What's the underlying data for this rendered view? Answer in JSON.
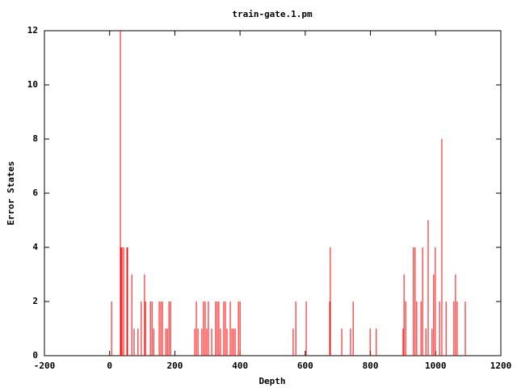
{
  "chart_data": {
    "type": "impulse",
    "title": "train-gate.1.pm",
    "xlabel": "Depth",
    "ylabel": "Error States",
    "color": "#ff0000",
    "x": [
      6,
      33,
      35,
      38,
      43,
      53,
      55,
      68,
      75,
      87,
      97,
      107,
      110,
      125,
      130,
      135,
      152,
      157,
      162,
      172,
      177,
      182,
      187,
      261,
      266,
      271,
      283,
      288,
      293,
      298,
      303,
      313,
      325,
      330,
      335,
      340,
      350,
      355,
      360,
      370,
      375,
      380,
      385,
      395,
      400,
      563,
      571,
      603,
      675,
      677,
      712,
      739,
      747,
      799,
      818,
      900,
      903,
      908,
      932,
      937,
      942,
      955,
      960,
      970,
      977,
      989,
      994,
      999,
      1012,
      1019,
      1032,
      1056,
      1061,
      1066,
      1091
    ],
    "values": [
      2,
      12,
      4,
      4,
      4,
      4,
      4,
      3,
      1,
      1,
      2,
      3,
      2,
      2,
      2,
      1,
      2,
      2,
      2,
      1,
      1,
      2,
      2,
      1,
      2,
      1,
      1,
      2,
      2,
      1,
      2,
      1,
      2,
      2,
      2,
      1,
      2,
      2,
      1,
      2,
      1,
      1,
      1,
      2,
      2,
      1,
      2,
      2,
      2,
      4,
      1,
      1,
      2,
      1,
      1,
      1,
      3,
      2,
      4,
      4,
      2,
      2,
      4,
      1,
      5,
      1,
      3,
      4,
      2,
      8,
      2,
      2,
      3,
      2,
      2
    ],
    "xlim": [
      -200,
      1200
    ],
    "xticks": [
      -200,
      0,
      200,
      400,
      600,
      800,
      1000,
      1200
    ],
    "ylim": [
      0,
      12
    ],
    "yticks": [
      0,
      2,
      4,
      6,
      8,
      10,
      12
    ]
  }
}
